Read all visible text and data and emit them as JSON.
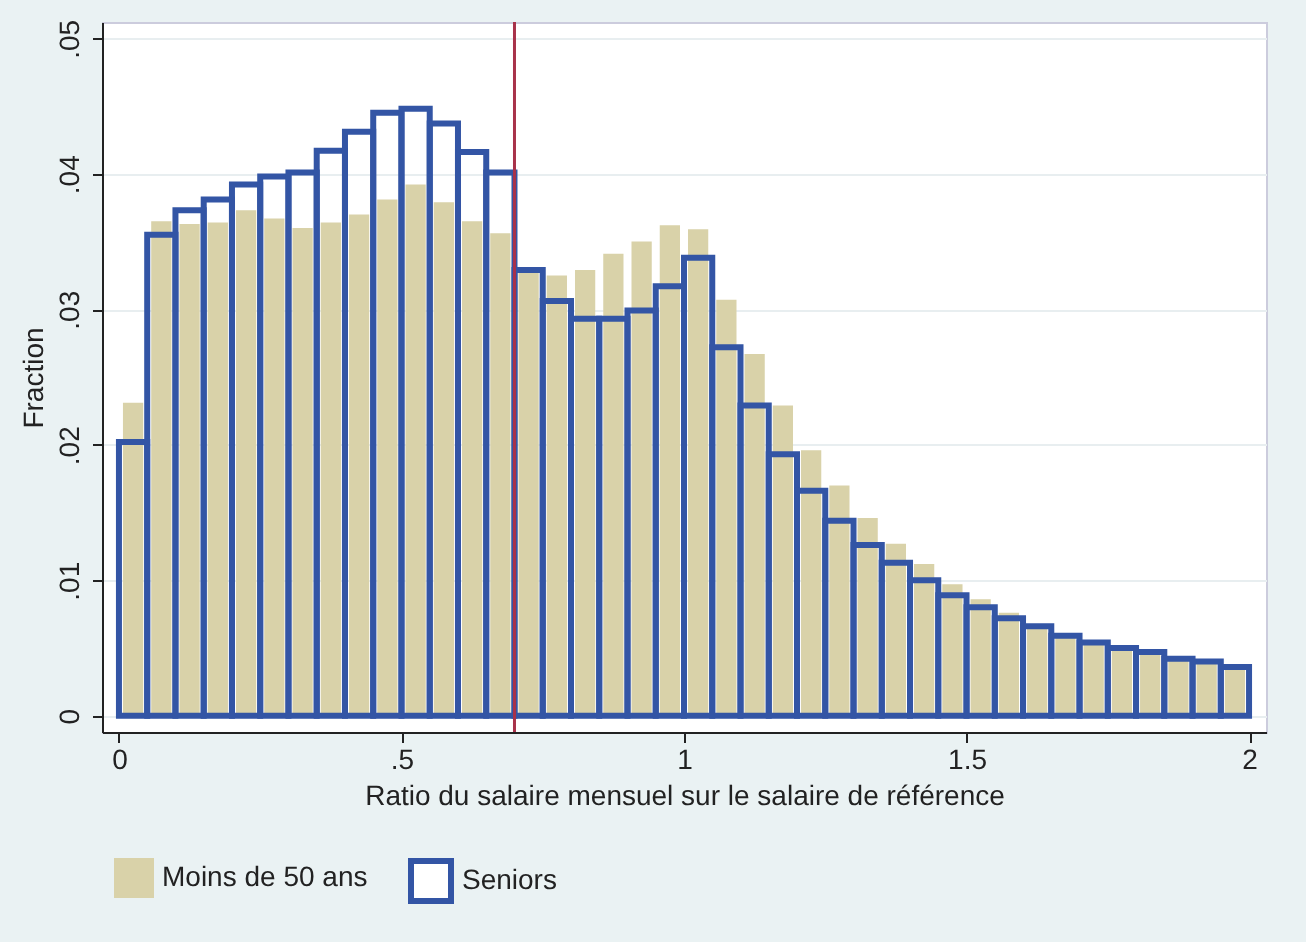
{
  "chart_data": {
    "type": "histogram",
    "xlabel": "Ratio du salaire mensuel sur le salaire de référence",
    "ylabel": "Fraction",
    "bins": [
      0,
      0.05,
      0.1,
      0.15,
      0.2,
      0.25,
      0.3,
      0.35,
      0.4,
      0.45,
      0.5,
      0.55,
      0.6,
      0.65,
      0.7,
      0.75,
      0.8,
      0.85,
      0.9,
      0.95,
      1,
      1.05,
      1.1,
      1.15,
      1.2,
      1.25,
      1.3,
      1.35,
      1.4,
      1.45,
      1.5,
      1.55,
      1.6,
      1.65,
      1.7,
      1.75,
      1.8,
      1.85,
      1.9,
      1.95,
      2
    ],
    "series": [
      {
        "name": "Moins de 50 ans",
        "color": "#d9d2a9",
        "values": [
          0.0231,
          0.0365,
          0.0363,
          0.0364,
          0.0373,
          0.0367,
          0.036,
          0.0364,
          0.037,
          0.0381,
          0.0392,
          0.0379,
          0.0365,
          0.0356,
          0.0329,
          0.0325,
          0.0329,
          0.0341,
          0.035,
          0.0362,
          0.0359,
          0.0307,
          0.0267,
          0.0229,
          0.0196,
          0.017,
          0.0146,
          0.0127,
          0.0112,
          0.0097,
          0.0086,
          0.0076,
          0.0067,
          0.006,
          0.0055,
          0.0051,
          0.0048,
          0.0042,
          0.004,
          0.0036
        ]
      },
      {
        "name": "Seniors",
        "color": "#3355a5",
        "values": [
          0.0202,
          0.0355,
          0.0373,
          0.0381,
          0.0392,
          0.0398,
          0.0401,
          0.0417,
          0.0431,
          0.0445,
          0.0448,
          0.0437,
          0.0416,
          0.0401,
          0.0329,
          0.0306,
          0.0293,
          0.0293,
          0.0299,
          0.0317,
          0.0338,
          0.0272,
          0.0229,
          0.0193,
          0.0166,
          0.0144,
          0.0126,
          0.0113,
          0.01,
          0.0089,
          0.008,
          0.0072,
          0.0066,
          0.0059,
          0.0054,
          0.005,
          0.0047,
          0.0042,
          0.004,
          0.0036
        ]
      }
    ],
    "xlim": [
      -0.03,
      2.03
    ],
    "xticks": [
      0,
      {
        "value": 0.5,
        "label": ".5"
      },
      1,
      1.5,
      2
    ],
    "ylim": [
      -0.0012,
      0.0512
    ],
    "yticks": [
      0,
      {
        "value": 0.01,
        "label": ".01"
      },
      {
        "value": 0.02,
        "label": ".02"
      },
      {
        "value": 0.03,
        "label": ".03"
      },
      {
        "value": 0.04,
        "label": ".04"
      },
      {
        "value": 0.05,
        "label": ".05"
      }
    ],
    "ref_lines": [
      {
        "axis": "x",
        "value": 0.7,
        "color": "#a8324a"
      }
    ],
    "grid": "y",
    "legend": "bottom"
  }
}
